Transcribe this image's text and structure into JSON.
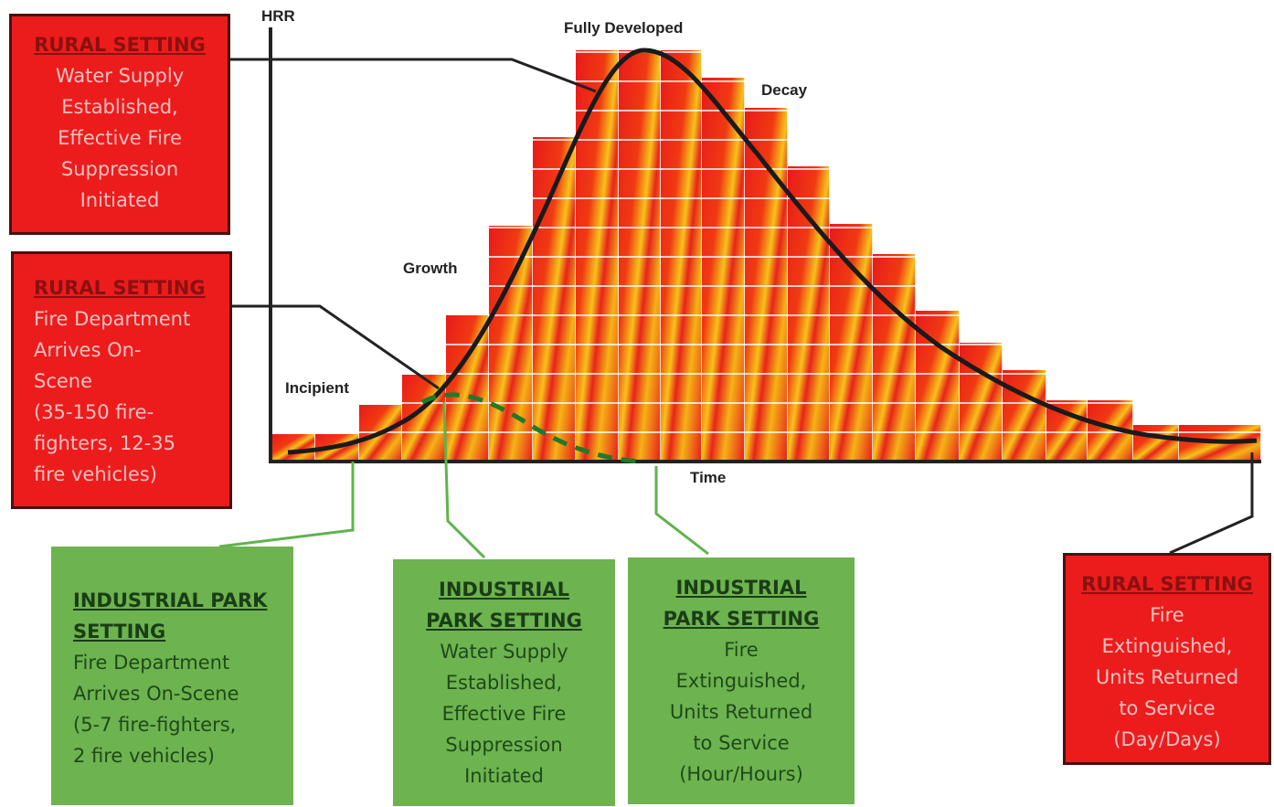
{
  "axis": {
    "y_label": "HRR",
    "x_label": "Time"
  },
  "stages": {
    "incipient": "Incipient",
    "growth": "Growth",
    "fully_developed": "Fully Developed",
    "decay": "Decay"
  },
  "rural_boxes": [
    {
      "heading": "RURAL SETTING",
      "lines": [
        "Water Supply",
        "Established,",
        "Effective Fire",
        "Suppression",
        "Initiated"
      ]
    },
    {
      "heading": "RURAL SETTING",
      "lines": [
        "Fire Department",
        "Arrives On-",
        "Scene",
        "(35-150 fire-",
        "fighters, 12-35",
        "fire vehicles)"
      ]
    },
    {
      "heading": "RURAL SETTING",
      "lines": [
        "Fire",
        "Extinguished,",
        "Units Returned",
        "to Service",
        "(Day/Days)"
      ]
    }
  ],
  "industrial_boxes": [
    {
      "heading": [
        "INDUSTRIAL PARK",
        "SETTING"
      ],
      "lines": [
        "Fire Department",
        "Arrives On-Scene",
        "(5-7 fire-fighters,",
        "2 fire vehicles)"
      ]
    },
    {
      "heading": [
        "INDUSTRIAL",
        "PARK SETTING"
      ],
      "lines": [
        "Water Supply",
        "Established,",
        "Effective Fire",
        "Suppression",
        "Initiated"
      ]
    },
    {
      "heading": [
        "INDUSTRIAL",
        "PARK SETTING"
      ],
      "lines": [
        "Fire",
        "Extinguished,",
        "Units Returned",
        "to Service",
        "(Hour/Hours)"
      ]
    }
  ]
}
